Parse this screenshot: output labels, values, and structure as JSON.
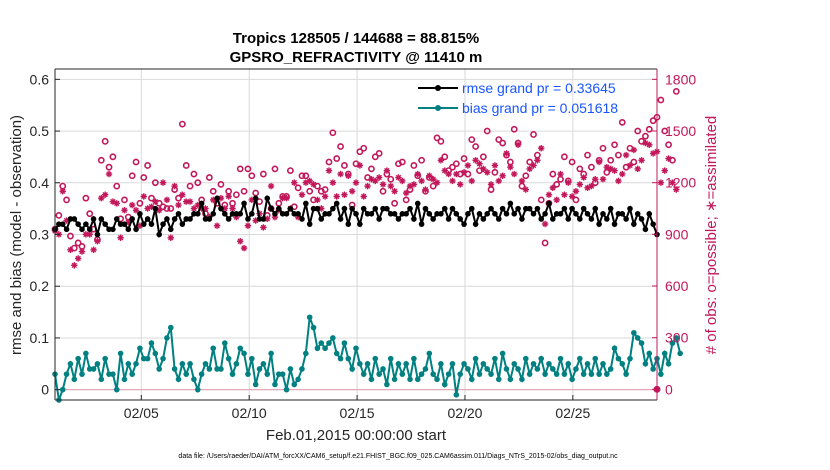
{
  "chart_data": {
    "type": "line",
    "title": "Tropics 128505 / 144688 = 88.815%",
    "subtitle": "GPSRO_REFRACTIVITY @ 11410 m",
    "xlabel": "Feb.01,2015 00:00:00 start",
    "ylabel_left": "rmse and bias (model - observation)",
    "ylabel_right": "# of obs: o=possible; ∗=assimilated",
    "x_ticks": [
      "02/05",
      "02/10",
      "02/15",
      "02/20",
      "02/25"
    ],
    "y_left_ticks": [
      "0",
      "0.1",
      "0.2",
      "0.3",
      "0.4",
      "0.5",
      "0.6"
    ],
    "y_right_ticks": [
      "0",
      "300",
      "600",
      "900",
      "1200",
      "1500",
      "1800"
    ],
    "ylim_left": [
      -0.02,
      0.62
    ],
    "ylim_right": [
      -62,
      1860
    ],
    "xlim": [
      1.0,
      28.9
    ],
    "footer": "data file: /Users/raeder/DAI/ATM_forcXX/CAM6_setup/f.e21.FHIST_BGC.f09_025.CAM6assim.011/Diags_NTrS_2015-02/obs_diag_output.nc",
    "legend": {
      "rmse_label": "rmse grand pr = 0.33645",
      "bias_label": "bias grand pr = 0.051618"
    },
    "colors": {
      "rmse": "#000000",
      "bias": "#008080",
      "obs": "#c2185b"
    },
    "rmse": [
      0.31,
      0.32,
      0.32,
      0.31,
      0.33,
      0.33,
      0.32,
      0.31,
      0.32,
      0.31,
      0.33,
      0.3,
      0.33,
      0.32,
      0.31,
      0.31,
      0.33,
      0.32,
      0.32,
      0.31,
      0.33,
      0.31,
      0.34,
      0.32,
      0.33,
      0.32,
      0.35,
      0.3,
      0.32,
      0.33,
      0.31,
      0.33,
      0.34,
      0.32,
      0.33,
      0.33,
      0.34,
      0.34,
      0.36,
      0.33,
      0.33,
      0.34,
      0.37,
      0.35,
      0.34,
      0.33,
      0.34,
      0.34,
      0.34,
      0.36,
      0.33,
      0.34,
      0.37,
      0.33,
      0.33,
      0.37,
      0.35,
      0.34,
      0.35,
      0.34,
      0.34,
      0.35,
      0.34,
      0.34,
      0.33,
      0.36,
      0.32,
      0.35,
      0.35,
      0.33,
      0.34,
      0.34,
      0.35,
      0.36,
      0.33,
      0.35,
      0.32,
      0.35,
      0.34,
      0.32,
      0.35,
      0.34,
      0.34,
      0.35,
      0.33,
      0.35,
      0.35,
      0.34,
      0.34,
      0.33,
      0.34,
      0.34,
      0.35,
      0.33,
      0.36,
      0.32,
      0.35,
      0.34,
      0.33,
      0.34,
      0.34,
      0.35,
      0.33,
      0.35,
      0.34,
      0.33,
      0.32,
      0.34,
      0.35,
      0.32,
      0.34,
      0.33,
      0.34,
      0.35,
      0.34,
      0.33,
      0.35,
      0.34,
      0.36,
      0.34,
      0.35,
      0.33,
      0.35,
      0.35,
      0.34,
      0.35,
      0.33,
      0.34,
      0.36,
      0.33,
      0.34,
      0.34,
      0.35,
      0.33,
      0.35,
      0.34,
      0.33,
      0.35,
      0.34,
      0.33,
      0.35,
      0.32,
      0.34,
      0.33,
      0.35,
      0.32,
      0.34,
      0.34,
      0.33,
      0.35,
      0.32,
      0.34,
      0.33,
      0.31,
      0.34,
      0.32,
      0.3
    ],
    "bias": [
      0.03,
      -0.02,
      0.0,
      0.03,
      0.05,
      0.02,
      0.06,
      0.03,
      0.07,
      0.04,
      0.04,
      0.05,
      0.02,
      0.06,
      0.03,
      0.03,
      0.0,
      0.07,
      0.02,
      0.05,
      0.03,
      0.05,
      0.08,
      0.06,
      0.06,
      0.09,
      0.07,
      0.04,
      0.06,
      0.1,
      0.12,
      0.04,
      0.02,
      0.05,
      0.03,
      0.05,
      0.02,
      0.0,
      0.03,
      0.05,
      0.04,
      0.08,
      0.04,
      0.04,
      0.09,
      0.06,
      0.03,
      0.05,
      0.08,
      0.07,
      0.03,
      0.06,
      0.01,
      0.04,
      0.05,
      0.03,
      0.07,
      0.01,
      0.03,
      0.03,
      0.0,
      0.04,
      0.01,
      0.02,
      0.04,
      0.07,
      0.14,
      0.12,
      0.08,
      0.09,
      0.08,
      0.09,
      0.1,
      0.07,
      0.06,
      0.09,
      0.06,
      0.04,
      0.08,
      0.05,
      0.03,
      0.05,
      0.02,
      0.06,
      0.03,
      0.04,
      0.01,
      0.06,
      0.02,
      0.05,
      0.03,
      0.05,
      0.02,
      0.06,
      0.02,
      0.03,
      0.04,
      0.07,
      0.03,
      0.02,
      0.05,
      0.01,
      0.03,
      0.05,
      -0.01,
      0.03,
      0.05,
      0.04,
      0.02,
      0.06,
      0.03,
      0.05,
      0.04,
      0.03,
      0.06,
      0.02,
      0.07,
      0.04,
      0.02,
      0.05,
      0.04,
      0.02,
      0.06,
      0.03,
      0.05,
      0.04,
      0.06,
      0.03,
      0.05,
      0.04,
      0.03,
      0.06,
      0.03,
      0.05,
      0.02,
      0.04,
      0.06,
      0.03,
      0.05,
      0.03,
      0.06,
      0.03,
      0.05,
      0.03,
      0.04,
      0.08,
      0.06,
      0.05,
      0.03,
      0.06,
      0.11,
      0.1,
      0.09,
      0.05,
      0.07,
      0.04,
      0.06,
      0.03,
      0.07,
      0.05,
      0.09,
      0.1,
      0.07
    ],
    "obs_possible": [
      930,
      1010,
      1180,
      1100,
      890,
      820,
      850,
      830,
      1110,
      1020,
      930,
      870,
      1330,
      1440,
      1290,
      1350,
      1180,
      990,
      1100,
      1000,
      1240,
      1320,
      1080,
      1230,
      1300,
      1110,
      1200,
      1080,
      1060,
      1050,
      1050,
      1160,
      1110,
      1540,
      1300,
      1180,
      1250,
      1200,
      1100,
      1020,
      1230,
      1150,
      1080,
      1190,
      1070,
      1150,
      1080,
      1130,
      1280,
      1150,
      1280,
      1240,
      1140,
      1090,
      1250,
      1010,
      1050,
      1280,
      1080,
      1120,
      1120,
      1270,
      1060,
      1170,
      1240,
      1240,
      1150,
      1100,
      1180,
      1150,
      1160,
      1320,
      1490,
      1340,
      1410,
      1300,
      1250,
      1070,
      1310,
      1380,
      1400,
      1230,
      1280,
      1350,
      1370,
      1150,
      1250,
      1220,
      1080,
      1310,
      1320,
      1100,
      1160,
      1300,
      1240,
      1330,
      1150,
      1230,
      1180,
      1460,
      1440,
      1350,
      1270,
      1290,
      1310,
      1250,
      1340,
      1250,
      1450,
      1410,
      1270,
      1350,
      1500,
      1160,
      1260,
      1450,
      1430,
      1360,
      1320,
      1510,
      1430,
      1180,
      1240,
      1320,
      1480,
      1360,
      1100,
      850,
      1080,
      1250,
      1190,
      1220,
      1350,
      1210,
      1320,
      1100,
      1280,
      1250,
      1360,
      1290,
      1200,
      1330,
      1400,
      1260,
      1330,
      1420,
      1360,
      1550,
      1290,
      1400,
      1320,
      1500,
      1440,
      1470,
      1510,
      1560,
      1580,
      1680,
      1500,
      1420,
      1330,
      1730
    ],
    "obs_assimilated": [
      920,
      900,
      1150,
      980,
      810,
      720,
      760,
      800,
      900,
      900,
      810,
      860,
      1110,
      1130,
      1250,
      1090,
      1080,
      880,
      1040,
      970,
      1070,
      1040,
      950,
      1120,
      1050,
      1060,
      1090,
      1040,
      1200,
      1100,
      880,
      1180,
      1070,
      1130,
      1090,
      1090,
      1050,
      1070,
      1050,
      1050,
      1000,
      1100,
      950,
      1110,
      1050,
      1120,
      1050,
      1000,
      860,
      820,
      950,
      1100,
      980,
      1020,
      940,
      990,
      1180,
      1000,
      1040,
      1110,
      1110,
      1050,
      1200,
      1000,
      1130,
      1200,
      1210,
      1190,
      1100,
      1050,
      1120,
      1270,
      1200,
      1120,
      1250,
      1130,
      1240,
      1150,
      1200,
      1300,
      1120,
      1180,
      1220,
      1210,
      1230,
      1190,
      1270,
      1180,
      1150,
      1230,
      1210,
      1140,
      1180,
      1190,
      1250,
      1210,
      1160,
      1240,
      1220,
      1200,
      1330,
      1270,
      1250,
      1210,
      1250,
      1190,
      1260,
      1300,
      1210,
      1330,
      1310,
      1280,
      1260,
      1190,
      1300,
      1210,
      1240,
      1370,
      1290,
      1250,
      1420,
      1210,
      1160,
      1280,
      1300,
      1330,
      1400,
      960,
      1130,
      1170,
      1100,
      1250,
      1130,
      1200,
      1120,
      1150,
      1190,
      1230,
      1170,
      1180,
      1220,
      1320,
      1220,
      1290,
      1280,
      1270,
      1210,
      1250,
      1360,
      1300,
      1390,
      1280,
      1330,
      1430,
      1420,
      1370,
      1380,
      1200,
      1270,
      1340,
      1200,
      1160
    ]
  }
}
